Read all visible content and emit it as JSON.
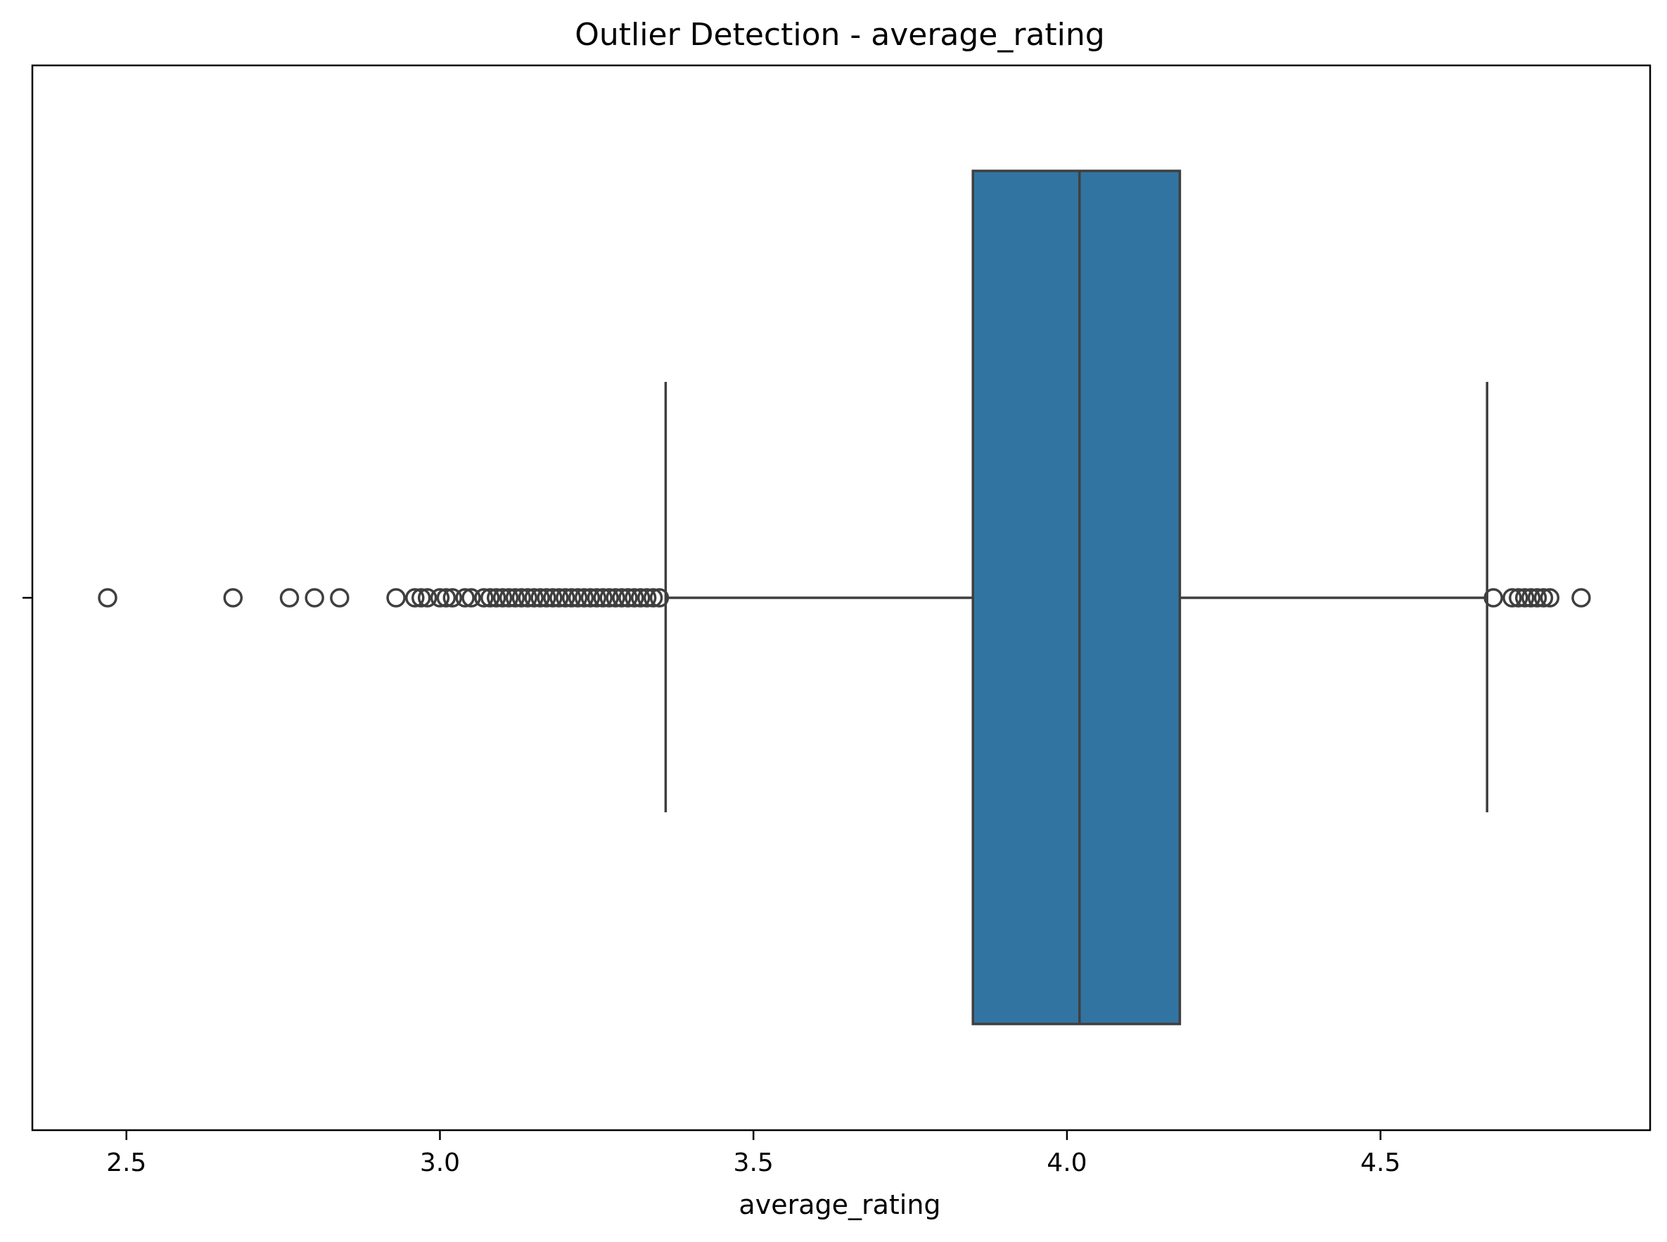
{
  "chart_data": {
    "type": "box",
    "title": "Outlier Detection - average_rating",
    "xlabel": "average_rating",
    "ylabel": "",
    "xlim": [
      2.35,
      4.93
    ],
    "xticks": [
      2.5,
      3.0,
      3.5,
      4.0,
      4.5
    ],
    "xtick_labels": [
      "2.5",
      "3.0",
      "3.5",
      "4.0",
      "4.5"
    ],
    "grid": false,
    "box": {
      "whisker_low": 3.36,
      "q1": 3.85,
      "median": 4.02,
      "q3": 4.18,
      "whisker_high": 4.67
    },
    "outliers": [
      2.47,
      2.67,
      2.76,
      2.8,
      2.84,
      2.93,
      2.96,
      2.97,
      2.98,
      3.0,
      3.01,
      3.02,
      3.04,
      3.05,
      3.07,
      3.08,
      3.09,
      3.1,
      3.11,
      3.12,
      3.13,
      3.14,
      3.15,
      3.16,
      3.17,
      3.18,
      3.19,
      3.2,
      3.21,
      3.22,
      3.23,
      3.24,
      3.25,
      3.26,
      3.27,
      3.28,
      3.29,
      3.3,
      3.31,
      3.32,
      3.33,
      3.34,
      3.35,
      4.68,
      4.71,
      4.72,
      4.73,
      4.74,
      4.75,
      4.76,
      4.77,
      4.82
    ],
    "box_color": "#3274a1",
    "line_color": "#3f3f3f"
  }
}
